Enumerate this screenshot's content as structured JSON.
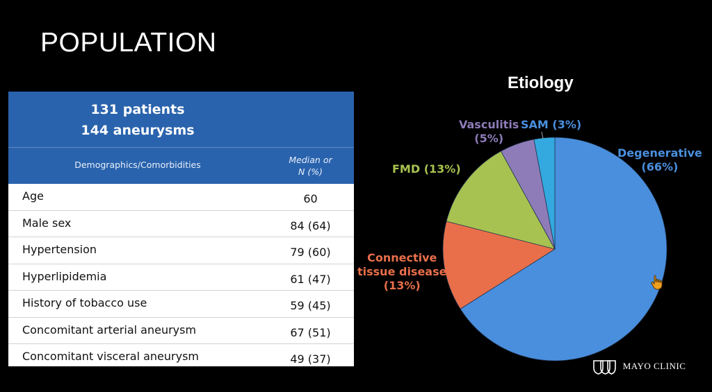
{
  "slide": {
    "title": "POPULATION"
  },
  "table": {
    "header_line1": "131 patients",
    "header_line2": "144 aneurysms",
    "col1_header": "Demographics/Comorbidities",
    "col2_header_line1": "Median or",
    "col2_header_line2": "N (%)",
    "rows": [
      {
        "label": "Age",
        "value": "60"
      },
      {
        "label": "Male sex",
        "value": "84 (64)"
      },
      {
        "label": "Hypertension",
        "value": "79 (60)"
      },
      {
        "label": "Hyperlipidemia",
        "value": "61 (47)"
      },
      {
        "label": "History of tobacco use",
        "value": "59 (45)"
      },
      {
        "label": "Concomitant arterial aneurysm",
        "value": "67 (51)"
      },
      {
        "label": "Concomitant visceral aneurysm",
        "value": "49 (37)"
      }
    ]
  },
  "chart_data": {
    "type": "pie",
    "title": "Etiology",
    "slices": [
      {
        "label_lines": [
          "Degenerative",
          "(66%)"
        ],
        "value": 66,
        "color": "#4a8fde",
        "label_color": "#4a8fde"
      },
      {
        "label_lines": [
          "Connective",
          "tissue disease",
          "(13%)"
        ],
        "value": 13,
        "color": "#e96f4a",
        "label_color": "#e96f4a"
      },
      {
        "label_lines": [
          "FMD (13%)"
        ],
        "value": 13,
        "color": "#a7c250",
        "label_color": "#a7c250"
      },
      {
        "label_lines": [
          "Vasculitis",
          "(5%)"
        ],
        "value": 5,
        "color": "#8e7cb8",
        "label_color": "#8e7cb8"
      },
      {
        "label_lines": [
          "SAM (3%)"
        ],
        "value": 3,
        "color": "#33a9e0",
        "label_color": "#4a8fde"
      }
    ]
  },
  "logo": {
    "text": "MAYO CLINIC",
    "icon": "mayo-shield-icon"
  },
  "cursor": {
    "icon": "hand-pointer-icon"
  }
}
